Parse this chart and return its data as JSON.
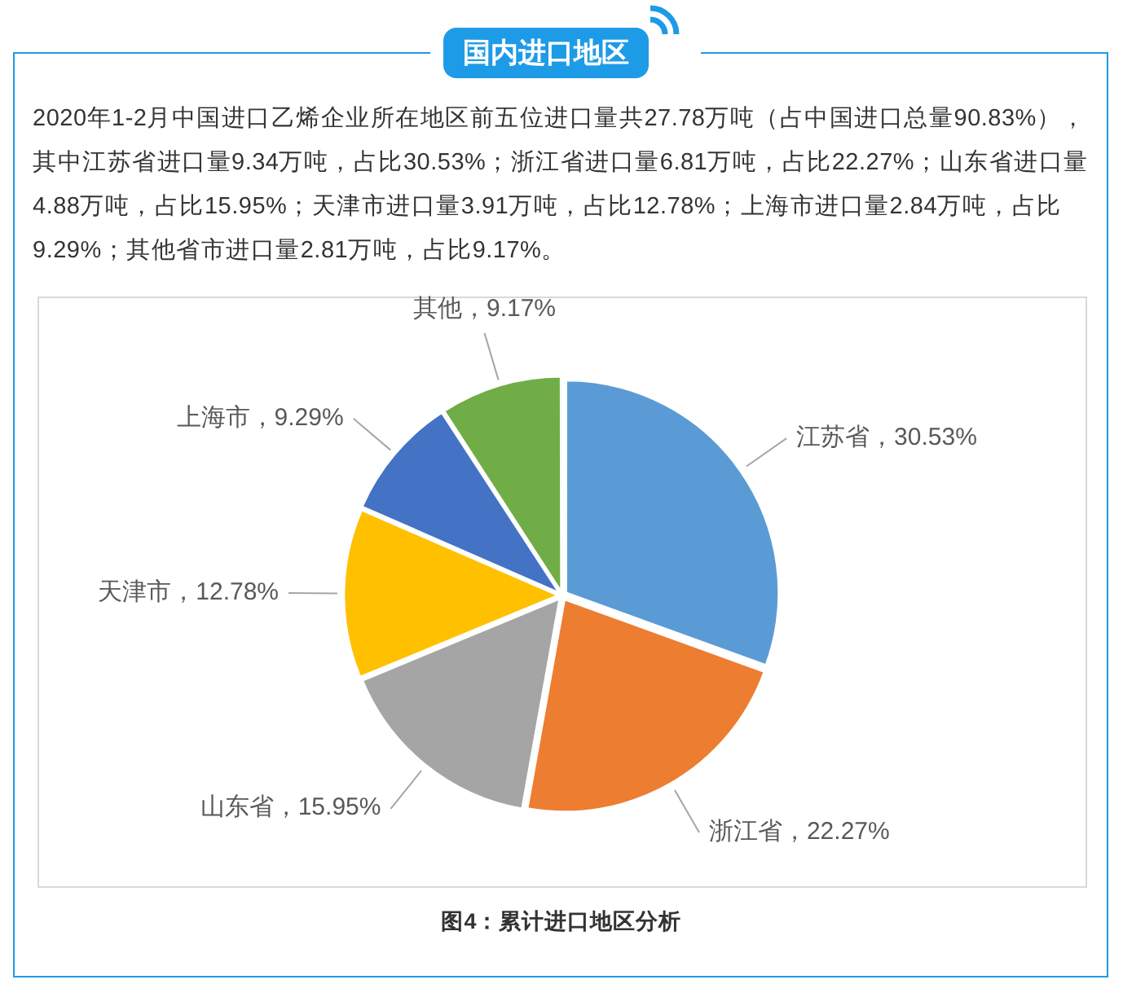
{
  "chart_data": {
    "type": "pie",
    "title": "国内进口地区",
    "subtitle": "2020年1-2月中国进口乙烯企业所在地区前五位进口量共27.78万吨（占中国进口总量90.83%），其中江苏省进口量9.34万吨，占比30.53%；浙江省进口量6.81万吨，占比22.27%；山东省进口量4.88万吨，占比15.95%；天津市进口量3.91万吨，占比12.78%；上海市进口量2.84万吨，占比9.29%；其他省市进口量2.81万吨，占比9.17%。",
    "categories": [
      "江苏省",
      "浙江省",
      "山东省",
      "天津市",
      "上海市",
      "其他"
    ],
    "values": [
      30.53,
      22.27,
      15.95,
      12.78,
      9.29,
      9.17
    ],
    "colors": [
      "#5b9bd5",
      "#ed7d31",
      "#a5a5a5",
      "#ffc000",
      "#4472c4",
      "#70ad47"
    ],
    "value_labels": [
      "30.53%",
      "22.27%",
      "15.95%",
      "12.78%",
      "9.29%",
      "9.17%"
    ],
    "annotations": [
      "图4：累计进口地区分析"
    ],
    "legend": false
  }
}
